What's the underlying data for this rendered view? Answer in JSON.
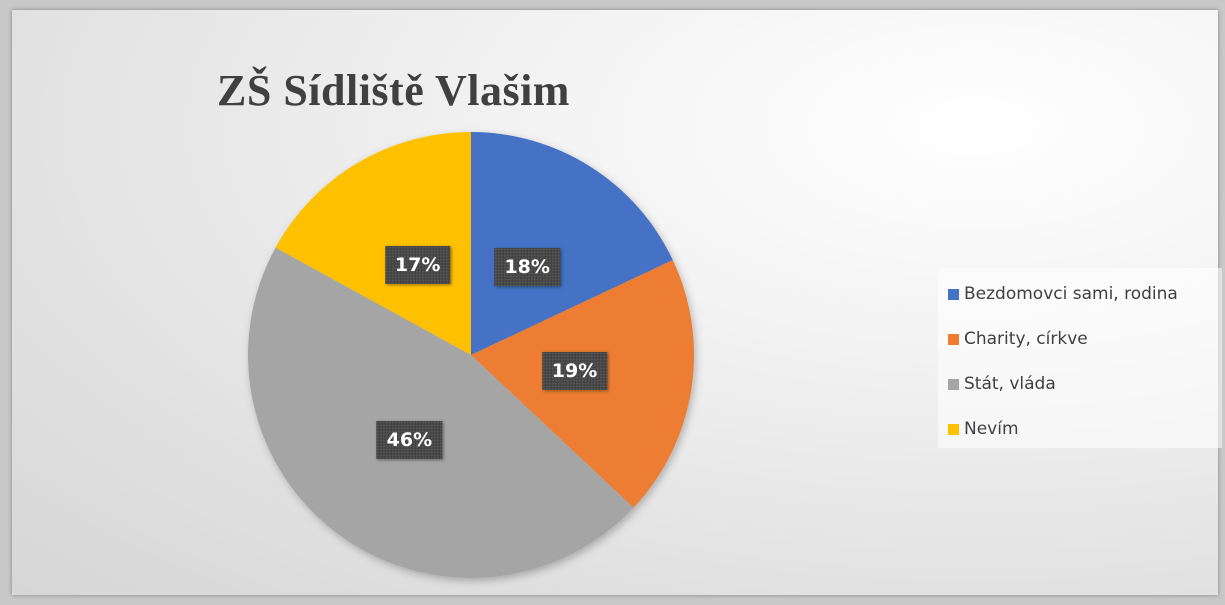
{
  "chart_data": {
    "type": "pie",
    "title": "ZŠ Sídliště Vlašim",
    "categories": [
      "Bezdomovci sami, rodina",
      "Charity, církve",
      "Stát, vláda",
      "Nevím"
    ],
    "values": [
      18,
      19,
      46,
      17
    ],
    "labels": [
      "18%",
      "19%",
      "46%",
      "17%"
    ],
    "colors": [
      "#4472c4",
      "#ed7d31",
      "#a5a5a5",
      "#ffc000"
    ],
    "legend": "right"
  }
}
